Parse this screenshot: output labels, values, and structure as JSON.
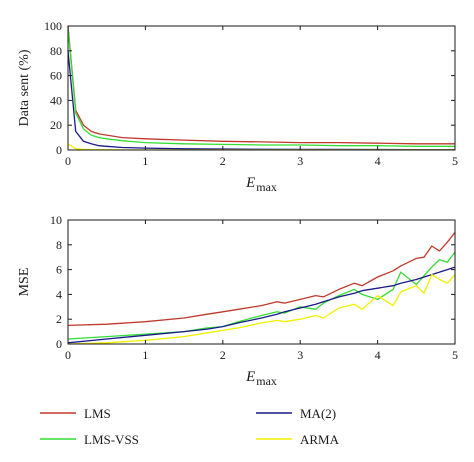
{
  "legend": {
    "items": [
      {
        "label": "LMS",
        "color": "#c0392b"
      },
      {
        "label": "LMS-VSS",
        "color": "#33dd33"
      },
      {
        "label": "MA(2)",
        "color": "#1a1a8c"
      },
      {
        "label": "ARMA",
        "color": "#f0f000"
      }
    ]
  },
  "chart_data": [
    {
      "type": "line",
      "title": "",
      "xlabel": "E",
      "xlabel_sub": "max",
      "ylabel": "Data sent (%)",
      "xlim": [
        0,
        5
      ],
      "ylim": [
        0,
        100
      ],
      "xticks": [
        "0",
        "1",
        "2",
        "3",
        "4",
        "5"
      ],
      "yticks": [
        "0",
        "20",
        "40",
        "60",
        "80",
        "100"
      ],
      "grid": false,
      "x": [
        0,
        0.1,
        0.2,
        0.3,
        0.4,
        0.5,
        0.7,
        1.0,
        1.5,
        2.0,
        2.5,
        3.0,
        3.5,
        4.0,
        4.5,
        5.0
      ],
      "series": [
        {
          "name": "LMS",
          "color": "#c0392b",
          "values": [
            100,
            32,
            20,
            15,
            13,
            12,
            10,
            9,
            8,
            7,
            6.5,
            6,
            6,
            5.5,
            5,
            5
          ]
        },
        {
          "name": "LMS-VSS",
          "color": "#33dd33",
          "values": [
            99,
            30,
            17,
            12,
            10,
            9,
            7.5,
            6,
            5,
            4.5,
            4,
            4,
            3.5,
            3.5,
            3,
            3
          ]
        },
        {
          "name": "MA(2)",
          "color": "#1a1a8c",
          "values": [
            80,
            15,
            7,
            5,
            3.5,
            3,
            2,
            1.5,
            1,
            0.8,
            0.6,
            0.5,
            0.5,
            0.4,
            0.3,
            0.3
          ]
        },
        {
          "name": "ARMA",
          "color": "#f0f000",
          "values": [
            5,
            1,
            0.5,
            0.3,
            0.2,
            0.2,
            0.1,
            0.1,
            0.1,
            0.1,
            0.1,
            0.1,
            0.1,
            0.1,
            0.1,
            0.1
          ]
        }
      ]
    },
    {
      "type": "line",
      "title": "",
      "xlabel": "E",
      "xlabel_sub": "max",
      "ylabel": "MSE",
      "xlim": [
        0,
        5
      ],
      "ylim": [
        0,
        10
      ],
      "xticks": [
        "0",
        "1",
        "2",
        "3",
        "4",
        "5"
      ],
      "yticks": [
        "0",
        "2",
        "4",
        "6",
        "8",
        "10"
      ],
      "grid": false,
      "x": [
        0,
        0.5,
        1.0,
        1.5,
        1.8,
        2.0,
        2.2,
        2.5,
        2.7,
        2.8,
        3.0,
        3.2,
        3.3,
        3.5,
        3.7,
        3.8,
        4.0,
        4.2,
        4.3,
        4.5,
        4.6,
        4.7,
        4.8,
        4.9,
        5.0
      ],
      "series": [
        {
          "name": "LMS",
          "color": "#c0392b",
          "values": [
            1.5,
            1.6,
            1.8,
            2.1,
            2.4,
            2.6,
            2.8,
            3.1,
            3.4,
            3.3,
            3.6,
            3.9,
            3.8,
            4.4,
            4.9,
            4.7,
            5.4,
            5.9,
            6.3,
            6.9,
            7.0,
            7.9,
            7.5,
            8.2,
            9.0
          ]
        },
        {
          "name": "LMS-VSS",
          "color": "#33dd33",
          "values": [
            0.4,
            0.6,
            0.8,
            1.0,
            1.3,
            1.4,
            1.8,
            2.3,
            2.6,
            2.5,
            3.0,
            2.8,
            3.3,
            3.9,
            4.4,
            4.0,
            3.6,
            4.4,
            5.8,
            4.8,
            5.5,
            6.2,
            6.8,
            6.6,
            7.4
          ]
        },
        {
          "name": "MA(2)",
          "color": "#1a1a8c",
          "values": [
            0.1,
            0.4,
            0.7,
            1.0,
            1.2,
            1.4,
            1.7,
            2.1,
            2.4,
            2.6,
            2.9,
            3.2,
            3.4,
            3.8,
            4.1,
            4.3,
            4.5,
            4.7,
            4.9,
            5.2,
            5.4,
            5.6,
            5.8,
            6.0,
            6.2
          ]
        },
        {
          "name": "ARMA",
          "color": "#f0f000",
          "values": [
            0.0,
            0.1,
            0.3,
            0.6,
            0.9,
            1.1,
            1.3,
            1.7,
            1.9,
            1.8,
            2.0,
            2.3,
            2.1,
            2.9,
            3.2,
            2.8,
            3.9,
            3.1,
            4.2,
            4.7,
            4.1,
            5.6,
            5.2,
            4.9,
            5.6
          ]
        }
      ]
    }
  ]
}
